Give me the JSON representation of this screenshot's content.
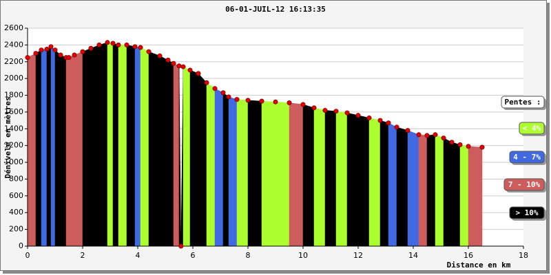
{
  "chart_data": {
    "type": "slope-profile",
    "title": "06-01-JUIL-12 16:13:35",
    "x_label": "Distance en km",
    "y_label": "Dénivelé en mètres",
    "xlim": [
      0,
      18
    ],
    "xticks": [
      0,
      2,
      4,
      6,
      8,
      10,
      12,
      14,
      16,
      18
    ],
    "ylim": [
      0,
      2600
    ],
    "yticks": [
      0,
      200,
      400,
      600,
      800,
      1000,
      1200,
      1400,
      1600,
      1800,
      2000,
      2200,
      2400,
      2600
    ],
    "grid": true,
    "point_color": "#e00000",
    "x": [
      0,
      0.3,
      0.5,
      0.7,
      0.85,
      1.0,
      1.2,
      1.4,
      1.5,
      1.7,
      2.0,
      2.3,
      2.6,
      2.9,
      3.1,
      3.3,
      3.6,
      3.9,
      4.1,
      4.4,
      4.8,
      5.1,
      5.3,
      5.5,
      5.57,
      5.65,
      5.9,
      6.2,
      6.5,
      6.8,
      7.1,
      7.3,
      7.6,
      8.0,
      8.5,
      9.0,
      9.5,
      10.0,
      10.4,
      10.8,
      11.2,
      11.6,
      12.0,
      12.4,
      12.8,
      13.1,
      13.4,
      13.8,
      14.2,
      14.5,
      14.8,
      15.1,
      15.4,
      15.7,
      16.0,
      16.5
    ],
    "values": [
      2250,
      2300,
      2340,
      2350,
      2380,
      2340,
      2280,
      2250,
      2250,
      2280,
      2320,
      2360,
      2400,
      2430,
      2420,
      2400,
      2400,
      2380,
      2370,
      2320,
      2270,
      2220,
      2180,
      2150,
      0,
      2140,
      2100,
      2060,
      1950,
      1880,
      1830,
      1780,
      1750,
      1740,
      1730,
      1720,
      1710,
      1690,
      1650,
      1620,
      1610,
      1590,
      1560,
      1530,
      1500,
      1470,
      1420,
      1380,
      1330,
      1320,
      1330,
      1290,
      1240,
      1210,
      1190,
      1180
    ],
    "segment_classes": [
      2,
      3,
      1,
      3,
      1,
      3,
      3,
      2,
      2,
      2,
      3,
      3,
      3,
      0,
      3,
      0,
      3,
      1,
      0,
      3,
      3,
      3,
      2,
      3,
      3,
      0,
      3,
      3,
      0,
      1,
      3,
      1,
      0,
      3,
      0,
      0,
      2,
      3,
      0,
      3,
      0,
      3,
      3,
      0,
      3,
      1,
      3,
      1,
      2,
      3,
      0,
      3,
      3,
      0,
      2
    ],
    "legend_title": "Pentes :",
    "legend": [
      {
        "label": "< 4%",
        "color": "#adff2f"
      },
      {
        "label": "4 - 7%",
        "color": "#4169e1"
      },
      {
        "label": "7 - 10%",
        "color": "#cd5c5c"
      },
      {
        "label": "> 10%",
        "color": "#000000"
      }
    ]
  }
}
